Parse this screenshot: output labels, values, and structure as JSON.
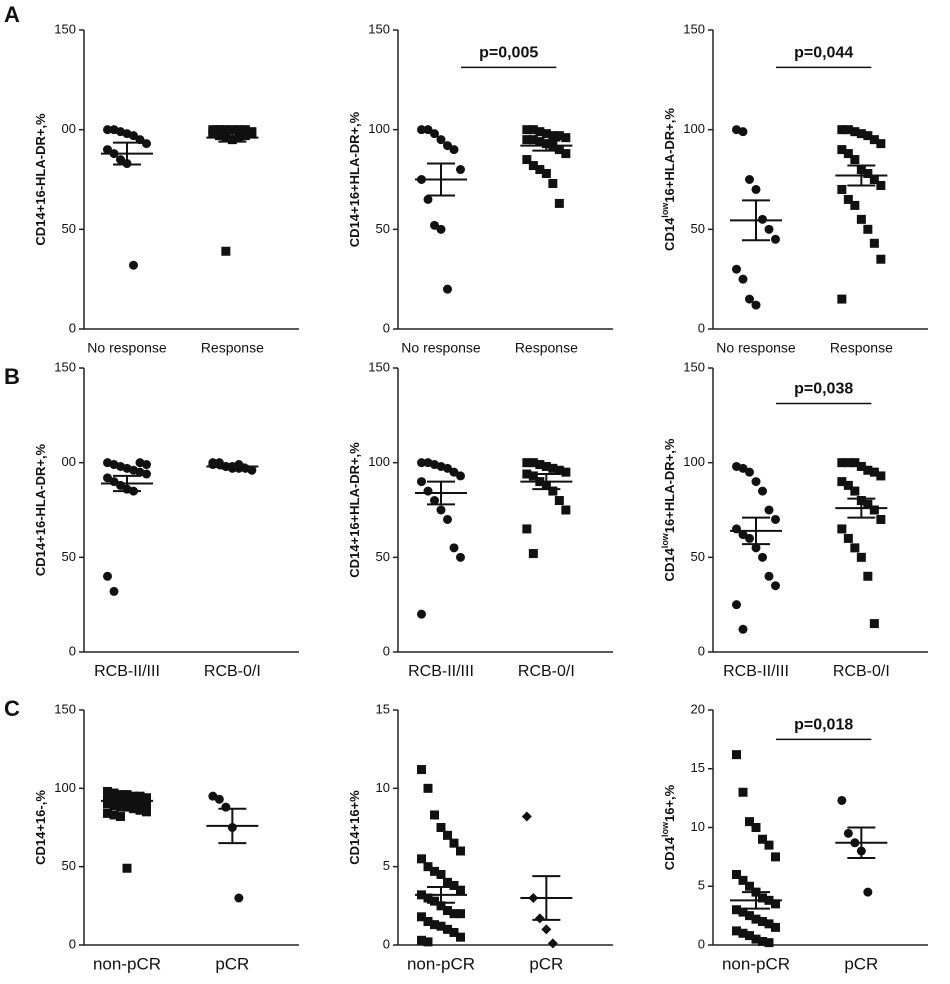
{
  "panel_labels": [
    "A",
    "B",
    "C"
  ],
  "chart_data": [
    {
      "type": "dot",
      "ylabel": [
        "CD14+16-HLA-DR+,%"
      ],
      "categories": [
        "No response",
        "Response"
      ],
      "ylim": [
        0,
        150
      ],
      "yticks": [
        0,
        50,
        {
          "value": 100,
          "label": "00"
        },
        150
      ],
      "groups": [
        {
          "marker": "circle",
          "mean": 88,
          "sem": 5.5,
          "values": [
            100,
            100,
            99,
            98,
            97,
            95,
            93,
            90,
            88,
            85,
            83,
            32
          ]
        },
        {
          "marker": "square",
          "mean": 96,
          "sem": 2,
          "values": [
            100,
            100,
            100,
            100,
            100,
            100,
            99,
            98,
            97,
            96,
            95,
            96,
            97,
            98,
            99,
            100,
            39
          ]
        }
      ]
    },
    {
      "type": "dot",
      "ylabel": [
        "CD14+16+HLA-DR+,%"
      ],
      "categories": [
        "No response",
        "Response"
      ],
      "ylim": [
        0,
        150
      ],
      "yticks": [
        0,
        50,
        100,
        150
      ],
      "annotation": "p=0,005",
      "groups": [
        {
          "marker": "circle",
          "mean": 75,
          "sem": 8,
          "values": [
            100,
            100,
            98,
            95,
            92,
            90,
            80,
            75,
            65,
            52,
            50,
            20
          ]
        },
        {
          "marker": "square",
          "mean": 92,
          "sem": 2.5,
          "values": [
            100,
            100,
            99,
            98,
            97,
            97,
            96,
            95,
            95,
            94,
            93,
            92,
            90,
            88,
            85,
            82,
            80,
            78,
            73,
            63
          ]
        }
      ]
    },
    {
      "type": "dot",
      "ylabel": [
        "CD14",
        "low",
        "16+HLA-DR+,%"
      ],
      "categories": [
        "No response",
        "Response"
      ],
      "ylim": [
        0,
        150
      ],
      "yticks": [
        0,
        50,
        100,
        150
      ],
      "annotation": "p=0,044",
      "groups": [
        {
          "marker": "circle",
          "mean": 54.5,
          "sem": 10,
          "values": [
            100,
            99,
            75,
            70,
            55,
            50,
            45,
            30,
            25,
            15,
            12
          ]
        },
        {
          "marker": "square",
          "mean": 77,
          "sem": 5,
          "values": [
            100,
            100,
            99,
            98,
            97,
            95,
            93,
            90,
            88,
            85,
            80,
            78,
            75,
            72,
            70,
            65,
            62,
            55,
            50,
            43,
            35,
            15
          ]
        }
      ]
    },
    {
      "type": "dot",
      "ylabel": [
        "CD14+16-HLA-DR+,%"
      ],
      "categories": [
        "RCB-II/III",
        "RCB-0/I"
      ],
      "ylim": [
        0,
        150
      ],
      "yticks": [
        0,
        50,
        {
          "value": 100,
          "label": "00"
        },
        150
      ],
      "groups": [
        {
          "marker": "circle",
          "mean": 89,
          "sem": 4,
          "values": [
            100,
            99,
            98,
            97,
            96,
            95,
            94,
            92,
            90,
            88,
            86,
            85,
            100,
            99,
            40,
            32
          ]
        },
        {
          "marker": "circle",
          "mean": 98,
          "sem": 1,
          "values": [
            100,
            99,
            98,
            98,
            97,
            97,
            96,
            99,
            100,
            98,
            97,
            99
          ]
        }
      ]
    },
    {
      "type": "dot",
      "ylabel": [
        "CD14+16+HLA-DR+,%"
      ],
      "categories": [
        "RCB-II/III",
        "RCB-0/I"
      ],
      "ylim": [
        0,
        150
      ],
      "yticks": [
        0,
        50,
        100,
        150
      ],
      "groups": [
        {
          "marker": "circle",
          "mean": 84,
          "sem": 6,
          "values": [
            100,
            100,
            99,
            98,
            97,
            95,
            93,
            90,
            85,
            80,
            75,
            70,
            55,
            50,
            20
          ]
        },
        {
          "marker": "square",
          "mean": 90,
          "sem": 4,
          "values": [
            100,
            100,
            99,
            98,
            97,
            96,
            95,
            94,
            93,
            90,
            88,
            85,
            80,
            75,
            65,
            52
          ]
        }
      ]
    },
    {
      "type": "dot",
      "ylabel": [
        "CD14",
        "low",
        "16+HLA-DR+,%"
      ],
      "categories": [
        "RCB-II/III",
        "RCB-0/I"
      ],
      "ylim": [
        0,
        150
      ],
      "yticks": [
        0,
        50,
        100,
        150
      ],
      "annotation": "p=0,038",
      "groups": [
        {
          "marker": "circle",
          "mean": 64,
          "sem": 7,
          "values": [
            98,
            97,
            95,
            90,
            85,
            75,
            70,
            65,
            62,
            60,
            55,
            50,
            40,
            35,
            25,
            12
          ]
        },
        {
          "marker": "square",
          "mean": 76,
          "sem": 5,
          "values": [
            100,
            100,
            100,
            98,
            96,
            95,
            93,
            90,
            88,
            85,
            80,
            78,
            75,
            70,
            65,
            60,
            55,
            50,
            40,
            15
          ]
        }
      ]
    },
    {
      "type": "dot",
      "ylabel": [
        "CD14+16-,%"
      ],
      "categories": [
        "non-pCR",
        "pCR"
      ],
      "ylim": [
        0,
        150
      ],
      "yticks": [
        0,
        50,
        100,
        150
      ],
      "groups": [
        {
          "marker": "square",
          "mean": 92,
          "sem": 2,
          "values": [
            98,
            97,
            96,
            96,
            95,
            95,
            94,
            94,
            93,
            93,
            92,
            92,
            91,
            90,
            90,
            89,
            88,
            88,
            87,
            86,
            85,
            84,
            83,
            82,
            49
          ]
        },
        {
          "marker": "circle",
          "mean": 76,
          "sem": 11,
          "values": [
            95,
            93,
            88,
            75,
            30
          ]
        }
      ]
    },
    {
      "type": "dot",
      "ylabel": [
        "CD14+16+%"
      ],
      "categories": [
        "non-pCR",
        "pCR"
      ],
      "ylim": [
        0,
        15
      ],
      "yticks": [
        0,
        5,
        10,
        15
      ],
      "groups": [
        {
          "marker": "square",
          "mean": 3.2,
          "sem": 0.5,
          "values": [
            11.2,
            10,
            8.3,
            7.5,
            7,
            6.5,
            6,
            5.5,
            5,
            4.7,
            4.5,
            4,
            3.8,
            3.5,
            3.2,
            3,
            2.8,
            2.5,
            2.2,
            2,
            2,
            1.8,
            1.5,
            1.3,
            1.2,
            1,
            0.8,
            0.5,
            0.3,
            0.2
          ]
        },
        {
          "marker": "diamond",
          "mean": 3,
          "sem": 1.4,
          "values": [
            8.2,
            3,
            1.7,
            1,
            0.1
          ]
        }
      ]
    },
    {
      "type": "dot",
      "ylabel": [
        "CD14",
        "low",
        "16+,%"
      ],
      "categories": [
        "non-pCR",
        "pCR"
      ],
      "ylim": [
        0,
        20
      ],
      "yticks": [
        0,
        5,
        10,
        15,
        20
      ],
      "annotation": "p=0,018",
      "groups": [
        {
          "marker": "square",
          "mean": 3.8,
          "sem": 0.7,
          "values": [
            16.2,
            13,
            10.5,
            10,
            9,
            8.5,
            7.5,
            6,
            5.5,
            5,
            4.5,
            4,
            3.8,
            3.5,
            3,
            2.8,
            2.5,
            2.2,
            2,
            1.8,
            1.5,
            1.2,
            1,
            0.8,
            0.5,
            0.3,
            0.2
          ]
        },
        {
          "marker": "circle",
          "mean": 8.7,
          "sem": 1.3,
          "values": [
            12.3,
            9.5,
            8.7,
            8,
            4.5
          ]
        }
      ]
    }
  ]
}
